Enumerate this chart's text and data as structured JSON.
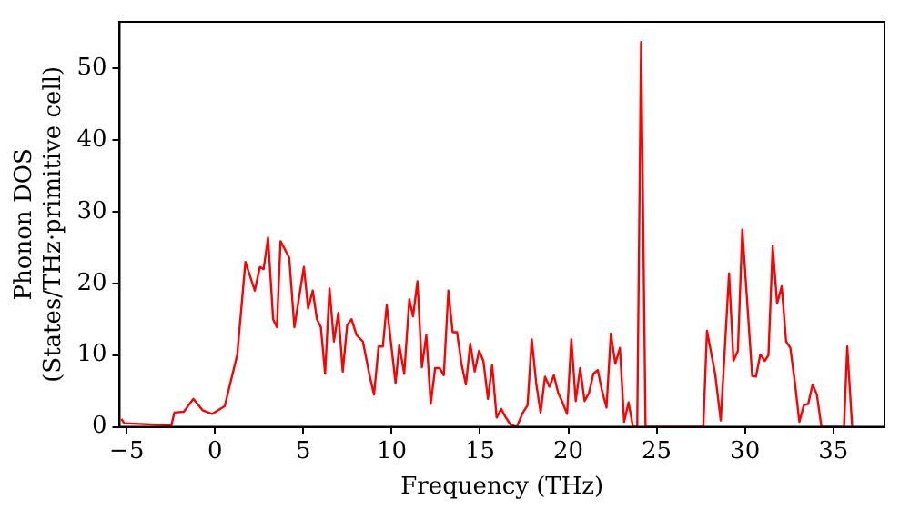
{
  "chart_data": {
    "type": "line",
    "xlabel": "Frequency (THz)",
    "ylabel": "Phonon DOS\n(States/THz·primitive cell)",
    "xlim": [
      -5.4,
      37.9
    ],
    "ylim": [
      0,
      56.5
    ],
    "xticks": [
      {
        "value": -5,
        "label": "−5"
      },
      0,
      5,
      10,
      15,
      20,
      25,
      30,
      35
    ],
    "yticks": [
      0,
      10,
      20,
      30,
      40,
      50
    ],
    "grid": false,
    "legend": false,
    "marker": "none",
    "line_style": "solid",
    "series": [
      {
        "color": "#ff0000",
        "x": [
          -5.3,
          -5.14,
          -2.47,
          -2.3,
          -1.77,
          -1.23,
          -0.7,
          -0.17,
          0.55,
          1.26,
          1.72,
          2.25,
          2.54,
          2.75,
          3.0,
          3.29,
          3.5,
          3.71,
          4.2,
          4.49,
          5.03,
          5.27,
          5.53,
          5.77,
          5.99,
          6.23,
          6.48,
          6.73,
          6.98,
          7.23,
          7.48,
          7.73,
          8.01,
          8.37,
          8.73,
          9.0,
          9.26,
          9.5,
          9.72,
          10.22,
          10.43,
          10.71,
          11.0,
          11.21,
          11.46,
          11.71,
          11.96,
          12.21,
          12.46,
          12.71,
          12.95,
          13.21,
          13.45,
          13.7,
          13.95,
          14.2,
          14.45,
          14.7,
          14.95,
          15.19,
          15.45,
          15.69,
          15.94,
          16.2,
          16.44,
          16.73,
          17.08,
          17.43,
          17.69,
          17.93,
          18.18,
          18.43,
          18.68,
          18.93,
          19.18,
          19.43,
          19.67,
          19.93,
          20.17,
          20.42,
          20.67,
          20.92,
          21.17,
          21.42,
          21.67,
          21.91,
          22.16,
          22.41,
          22.66,
          22.92,
          23.16,
          23.41,
          23.66,
          23.9,
          24.12,
          24.37,
          27.64,
          27.85,
          28.31,
          28.63,
          29.1,
          29.35,
          29.6,
          29.85,
          30.41,
          30.62,
          30.87,
          31.12,
          31.33,
          31.57,
          31.82,
          32.08,
          32.33,
          32.57,
          32.83,
          33.08,
          33.33,
          33.58,
          33.83,
          34.07,
          34.33,
          35.61,
          35.79,
          36.07
        ],
        "values": [
          1.1,
          0.5,
          0.2,
          2.0,
          2.1,
          3.9,
          2.3,
          1.8,
          2.9,
          10.1,
          23.0,
          19.0,
          22.3,
          22.0,
          26.4,
          15.0,
          13.9,
          25.9,
          23.6,
          13.9,
          22.3,
          16.5,
          19.0,
          15.0,
          13.9,
          7.4,
          19.3,
          11.9,
          15.9,
          7.7,
          14.2,
          15.0,
          12.8,
          11.9,
          7.4,
          4.5,
          11.2,
          11.2,
          17.0,
          6.1,
          11.4,
          7.4,
          17.8,
          15.4,
          20.3,
          8.3,
          12.8,
          3.2,
          8.2,
          8.2,
          7.2,
          19.0,
          13.2,
          13.2,
          8.8,
          5.9,
          11.6,
          7.7,
          10.6,
          9.2,
          3.9,
          8.6,
          1.3,
          2.5,
          1.4,
          0.3,
          0,
          2.0,
          3.0,
          12.2,
          6.1,
          2.0,
          7.0,
          5.6,
          7.2,
          4.7,
          3.4,
          1.8,
          12.2,
          3.6,
          8.2,
          3.6,
          4.7,
          7.4,
          7.9,
          5.0,
          2.7,
          13.0,
          8.8,
          11.0,
          0.7,
          3.4,
          0,
          0,
          53.7,
          0,
          0,
          13.4,
          7.4,
          0.9,
          21.4,
          9.2,
          10.6,
          27.5,
          7.1,
          7.0,
          10.1,
          9.2,
          10.0,
          25.2,
          17.2,
          19.6,
          11.9,
          11.0,
          6.1,
          0.7,
          3.0,
          3.2,
          5.9,
          4.5,
          0,
          0,
          11.2,
          0
        ]
      }
    ]
  }
}
